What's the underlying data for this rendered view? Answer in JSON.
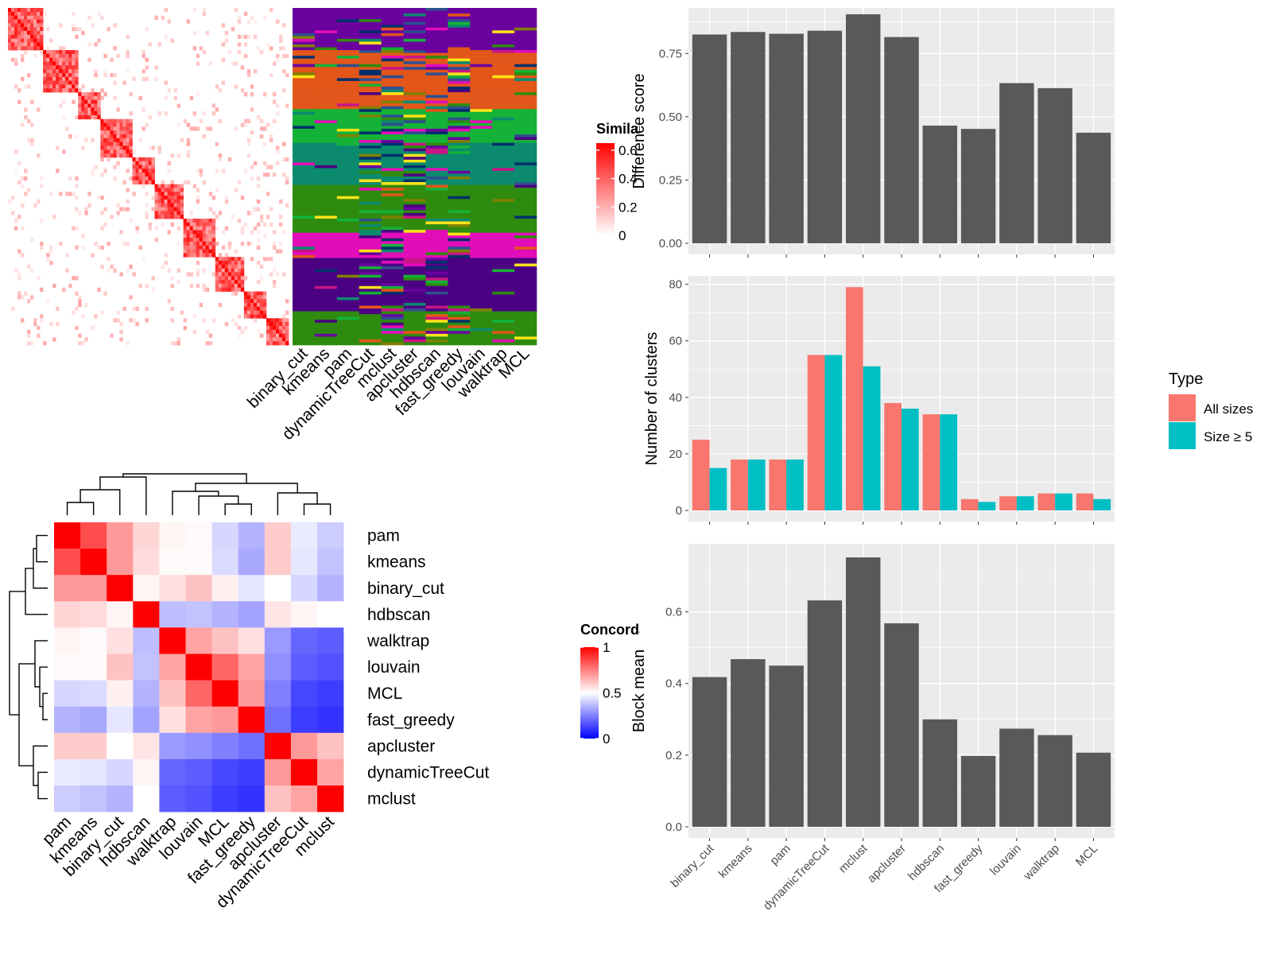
{
  "colors": {
    "bar": "#595959",
    "panel_bg": "#ebebeb",
    "grid": "#ffffff",
    "all_sizes": "#f8766d",
    "size5": "#00bfc4",
    "sim_low": "#ffffff",
    "sim_high": "#ff0000",
    "conc_low": "#0000ff",
    "conc_mid": "#ffffff",
    "conc_high": "#ff0000"
  },
  "cluster_palette": [
    "#6a009e",
    "#e2561a",
    "#14b237",
    "#0b8a6e",
    "#2e8b0e",
    "#e20cb8",
    "#4b0082",
    "#ffe417",
    "#00306a",
    "#808000",
    "#2f4f8f",
    "#c71585"
  ],
  "chart_data": [
    {
      "id": "similarity_heatmap",
      "type": "heatmap",
      "legend_title": "Similarity",
      "legend_ticks": [
        "0.6",
        "0.4",
        "0.2",
        "0"
      ],
      "legend_values": [
        0.6,
        0.4,
        0.2,
        0
      ],
      "range": [
        0,
        0.65
      ]
    },
    {
      "id": "cluster_assignment_heatmap",
      "type": "heatmap",
      "columns": [
        "binary_cut",
        "kmeans",
        "pam",
        "dynamicTreeCut",
        "mclust",
        "apcluster",
        "hdbscan",
        "fast_greedy",
        "louvain",
        "walktrap",
        "MCL"
      ]
    },
    {
      "id": "concordance_heatmap",
      "type": "heatmap",
      "legend_title": "Concordance",
      "legend_ticks": [
        "1",
        "0.5",
        "0"
      ],
      "legend_values": [
        1,
        0.5,
        0
      ],
      "rows": [
        "pam",
        "kmeans",
        "binary_cut",
        "hdbscan",
        "walktrap",
        "louvain",
        "MCL",
        "fast_greedy",
        "apcluster",
        "dynamicTreeCut",
        "mclust"
      ],
      "columns": [
        "pam",
        "kmeans",
        "binary_cut",
        "hdbscan",
        "walktrap",
        "louvain",
        "MCL",
        "fast_greedy",
        "apcluster",
        "dynamicTreeCut",
        "mclust"
      ],
      "values": [
        [
          1.0,
          0.85,
          0.7,
          0.58,
          0.52,
          0.51,
          0.42,
          0.35,
          0.6,
          0.46,
          0.4
        ],
        [
          0.85,
          1.0,
          0.7,
          0.57,
          0.51,
          0.51,
          0.43,
          0.33,
          0.6,
          0.45,
          0.38
        ],
        [
          0.7,
          0.7,
          1.0,
          0.52,
          0.56,
          0.62,
          0.53,
          0.45,
          0.5,
          0.42,
          0.35
        ],
        [
          0.58,
          0.57,
          0.52,
          1.0,
          0.37,
          0.38,
          0.35,
          0.32,
          0.55,
          0.52,
          0.5
        ],
        [
          0.52,
          0.51,
          0.56,
          0.37,
          1.0,
          0.68,
          0.62,
          0.56,
          0.3,
          0.2,
          0.18
        ],
        [
          0.51,
          0.51,
          0.62,
          0.38,
          0.68,
          1.0,
          0.8,
          0.68,
          0.28,
          0.18,
          0.16
        ],
        [
          0.42,
          0.43,
          0.53,
          0.35,
          0.62,
          0.8,
          1.0,
          0.7,
          0.25,
          0.14,
          0.12
        ],
        [
          0.35,
          0.33,
          0.45,
          0.32,
          0.56,
          0.68,
          0.7,
          1.0,
          0.22,
          0.12,
          0.1
        ],
        [
          0.6,
          0.6,
          0.5,
          0.55,
          0.3,
          0.28,
          0.25,
          0.22,
          1.0,
          0.7,
          0.62
        ],
        [
          0.46,
          0.45,
          0.42,
          0.52,
          0.2,
          0.18,
          0.14,
          0.12,
          0.7,
          1.0,
          0.68
        ],
        [
          0.4,
          0.38,
          0.35,
          0.5,
          0.18,
          0.16,
          0.12,
          0.1,
          0.62,
          0.68,
          1.0
        ]
      ]
    },
    {
      "id": "difference_score",
      "type": "bar",
      "ylabel": "Difference score",
      "categories": [
        "binary_cut",
        "kmeans",
        "pam",
        "dynamicTreeCut",
        "mclust",
        "apcluster",
        "hdbscan",
        "fast_greedy",
        "louvain",
        "walktrap",
        "MCL"
      ],
      "values": [
        0.825,
        0.835,
        0.828,
        0.84,
        0.905,
        0.815,
        0.465,
        0.452,
        0.633,
        0.613,
        0.437
      ],
      "ylim": [
        0,
        0.93
      ],
      "yticks": [
        "0.00",
        "0.25",
        "0.50",
        "0.75"
      ],
      "ytick_values": [
        0,
        0.25,
        0.5,
        0.75
      ]
    },
    {
      "id": "number_of_clusters",
      "type": "bar",
      "ylabel": "Number of clusters",
      "categories": [
        "binary_cut",
        "kmeans",
        "pam",
        "dynamicTreeCut",
        "mclust",
        "apcluster",
        "hdbscan",
        "fast_greedy",
        "louvain",
        "walktrap",
        "MCL"
      ],
      "series": [
        {
          "name": "All sizes",
          "values": [
            25,
            18,
            18,
            55,
            79,
            38,
            34,
            4,
            5,
            6,
            6
          ]
        },
        {
          "name": "Size ≥ 5",
          "values": [
            15,
            18,
            18,
            55,
            51,
            36,
            34,
            3,
            5,
            6,
            4
          ]
        }
      ],
      "ylim": [
        0,
        83
      ],
      "yticks": [
        "0",
        "20",
        "40",
        "60",
        "80"
      ],
      "ytick_values": [
        0,
        20,
        40,
        60,
        80
      ],
      "legend_title": "Type",
      "legend_position": "right"
    },
    {
      "id": "block_mean",
      "type": "bar",
      "ylabel": "Block mean",
      "categories": [
        "binary_cut",
        "kmeans",
        "pam",
        "dynamicTreeCut",
        "mclust",
        "apcluster",
        "hdbscan",
        "fast_greedy",
        "louvain",
        "walktrap",
        "MCL"
      ],
      "values": [
        0.418,
        0.468,
        0.45,
        0.632,
        0.752,
        0.568,
        0.3,
        0.198,
        0.274,
        0.256,
        0.207
      ],
      "ylim": [
        0,
        0.79
      ],
      "yticks": [
        "0.0",
        "0.2",
        "0.4",
        "0.6"
      ],
      "ytick_values": [
        0,
        0.2,
        0.4,
        0.6
      ]
    }
  ]
}
